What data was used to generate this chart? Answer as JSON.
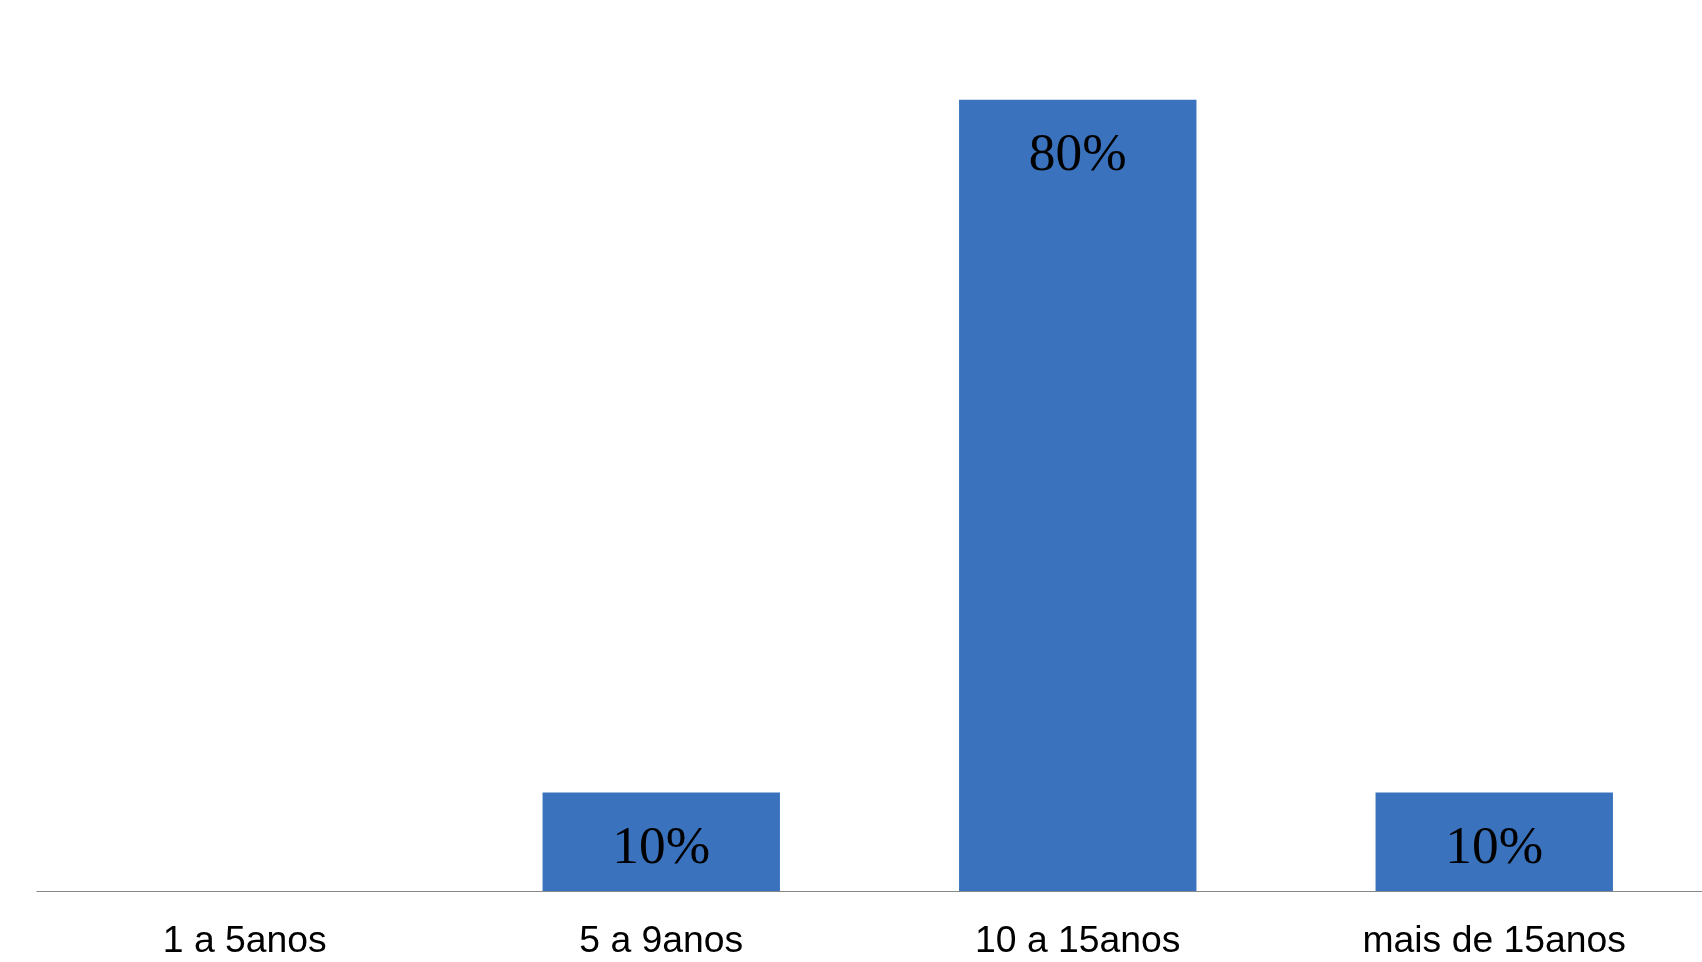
{
  "chart_data": {
    "type": "bar",
    "categories": [
      "1 a 5anos",
      "5 a 9anos",
      "10 a 15anos",
      "mais de 15anos"
    ],
    "values": [
      0,
      10,
      80,
      10
    ],
    "value_labels": [
      null,
      "10%",
      "80%",
      "10%"
    ],
    "color": "#3a72bd",
    "grid": false
  }
}
